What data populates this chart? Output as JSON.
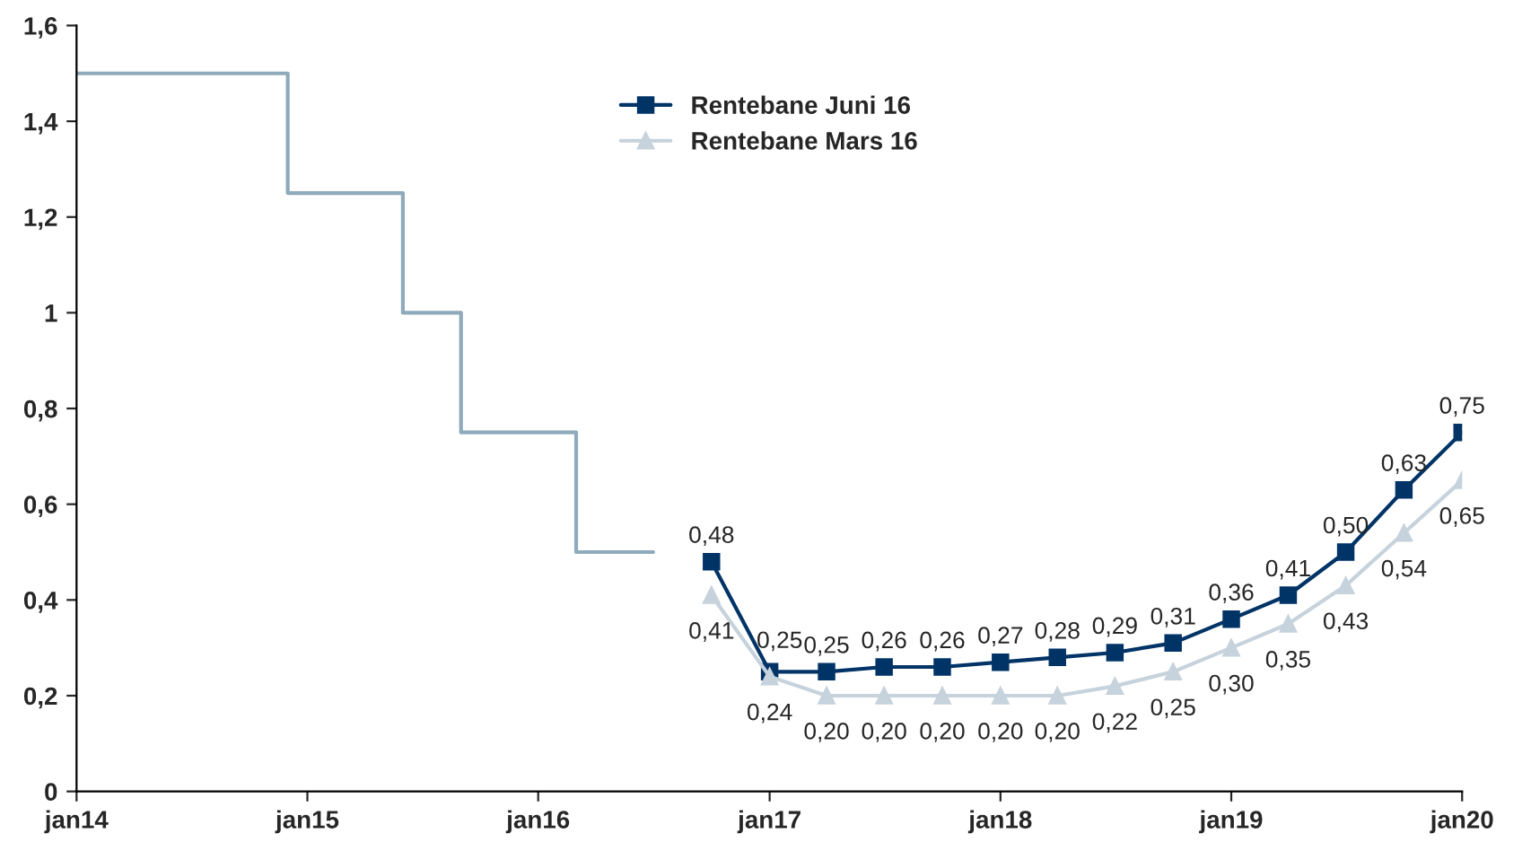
{
  "chart_data": {
    "type": "line",
    "xlim": [
      "2014-01",
      "2020-01"
    ],
    "xticks": [
      {
        "value": "2014-01",
        "label": "jan14"
      },
      {
        "value": "2015-01",
        "label": "jan15"
      },
      {
        "value": "2016-01",
        "label": "jan16"
      },
      {
        "value": "2017-01",
        "label": "jan17"
      },
      {
        "value": "2018-01",
        "label": "jan18"
      },
      {
        "value": "2019-01",
        "label": "jan19"
      },
      {
        "value": "2020-01",
        "label": "jan20"
      }
    ],
    "ylim": [
      0,
      1.6
    ],
    "yticks": [
      0,
      {
        "value": 0.2,
        "label": "0,2"
      },
      {
        "value": 0.4,
        "label": "0,4"
      },
      {
        "value": 0.6,
        "label": "0,6"
      },
      {
        "value": 0.8,
        "label": "0,8"
      },
      1,
      {
        "value": 1.2,
        "label": "1,2"
      },
      {
        "value": 1.4,
        "label": "1,4"
      },
      {
        "value": 1.6,
        "label": "1,6"
      }
    ],
    "grid": false,
    "legend": "top center",
    "series": [
      {
        "type": "step",
        "color": "#8eaabb",
        "marker": "none",
        "x": [
          "2014-01",
          "2014-12",
          "2015-06",
          "2015-09",
          "2016-03",
          "2016-07"
        ],
        "values": [
          1.5,
          1.25,
          1.0,
          0.75,
          0.5,
          0.5
        ]
      },
      {
        "name": "Rentebane Juni 16",
        "color": "#003366",
        "marker": "square",
        "x": [
          "2016-10",
          "2017-01",
          "2017-04",
          "2017-07",
          "2017-10",
          "2018-01",
          "2018-04",
          "2018-07",
          "2018-10",
          "2019-01",
          "2019-04",
          "2019-07",
          "2019-10",
          "2020-01"
        ],
        "values": [
          0.48,
          0.25,
          0.25,
          0.26,
          0.26,
          0.27,
          0.28,
          0.29,
          0.31,
          0.36,
          0.41,
          0.5,
          0.63,
          0.75
        ],
        "value_labels": [
          "0,48",
          "0,25",
          "0,25",
          "0,26",
          "0,26",
          "0,27",
          "0,28",
          "0,29",
          "0,31",
          "0,36",
          "0,41",
          "0,50",
          "0,63",
          "0,75"
        ]
      },
      {
        "name": "Rentebane Mars 16",
        "color": "#c6d2dc",
        "marker": "triangle",
        "x": [
          "2016-10",
          "2017-01",
          "2017-04",
          "2017-07",
          "2017-10",
          "2018-01",
          "2018-04",
          "2018-07",
          "2018-10",
          "2019-01",
          "2019-04",
          "2019-07",
          "2019-10",
          "2020-01"
        ],
        "values": [
          0.41,
          0.24,
          0.2,
          0.2,
          0.2,
          0.2,
          0.2,
          0.22,
          0.25,
          0.3,
          0.35,
          0.43,
          0.54,
          0.65
        ],
        "value_labels": [
          "0,41",
          "0,24",
          "0,20",
          "0,20",
          "0,20",
          "0,20",
          "0,20",
          "0,22",
          "0,25",
          "0,30",
          "0,35",
          "0,43",
          "0,54",
          "0,65"
        ]
      }
    ]
  }
}
